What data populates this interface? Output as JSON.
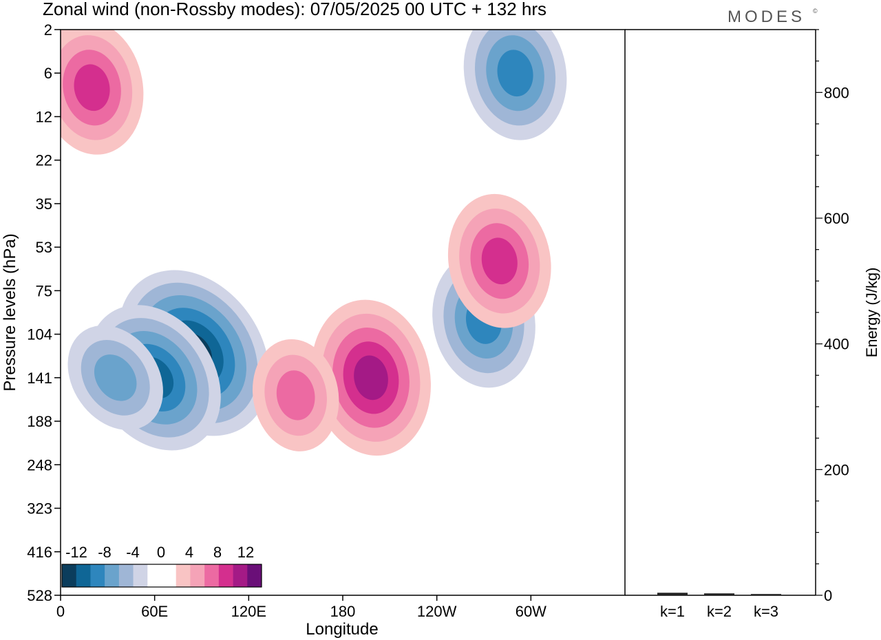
{
  "title": "Zonal wind (non-Rossby modes):  07/05/2025  00 UTC  + 132 hrs",
  "brand": {
    "text": "MODES",
    "mark": "©",
    "color": "#555555"
  },
  "chart_data": [
    {
      "type": "heatmap",
      "title": "Zonal wind (non-Rossby modes):  07/05/2025  00 UTC  + 132 hrs",
      "xlabel": "Longitude",
      "ylabel": "Pressure levels (hPa)",
      "x_ticks": [
        "0",
        "60E",
        "120E",
        "180",
        "120W",
        "60W"
      ],
      "y_ticks": [
        "2",
        "6",
        "12",
        "22",
        "35",
        "53",
        "75",
        "104",
        "141",
        "188",
        "248",
        "323",
        "416",
        "528"
      ],
      "colorbar": {
        "labels": [
          "-12",
          "-8",
          "-4",
          "0",
          "4",
          "8",
          "12"
        ],
        "colors": [
          "#0b3d5c",
          "#0f6696",
          "#2e86bd",
          "#6aa3cc",
          "#9fb6d6",
          "#d0d4e6",
          "#ffffff",
          "#ffffff",
          "#f9c4c4",
          "#f5a3b7",
          "#ec6aa2",
          "#d42f8e",
          "#a41a86",
          "#6a0f78"
        ]
      },
      "features": [
        {
          "sign": "negative",
          "lon": 85,
          "level": 120,
          "peak": -14
        },
        {
          "sign": "negative",
          "lon": 60,
          "level": 141,
          "peak": -10
        },
        {
          "sign": "negative",
          "lon": 35,
          "level": 141,
          "peak": -6
        },
        {
          "sign": "positive",
          "lon": 198,
          "level": 141,
          "peak": 9
        },
        {
          "sign": "positive",
          "lon": 150,
          "level": 160,
          "peak": 6
        },
        {
          "sign": "negative",
          "lon": 270,
          "level": 95,
          "peak": -7
        },
        {
          "sign": "negative",
          "lon": 290,
          "level": 6,
          "peak": -7
        },
        {
          "sign": "positive",
          "lon": 20,
          "level": 8,
          "peak": 8
        },
        {
          "sign": "positive",
          "lon": 280,
          "level": 60,
          "peak": 7
        }
      ]
    },
    {
      "type": "bar",
      "categories": [
        "k=1",
        "k=2",
        "k=3"
      ],
      "values": [
        4,
        3,
        2
      ],
      "ylabel": "Energy (J/kg)",
      "ylim": [
        0,
        900
      ],
      "y_ticks": [
        0,
        200,
        400,
        600,
        800
      ]
    }
  ]
}
